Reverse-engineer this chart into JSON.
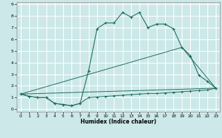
{
  "xlabel": "Humidex (Indice chaleur)",
  "background_color": "#cce8e8",
  "grid_color": "#ffffff",
  "line_color": "#1a6b5a",
  "xlim": [
    -0.5,
    23.5
  ],
  "ylim": [
    -0.2,
    9.2
  ],
  "xticks": [
    0,
    1,
    2,
    3,
    4,
    5,
    6,
    7,
    8,
    9,
    10,
    11,
    12,
    13,
    14,
    15,
    16,
    17,
    18,
    19,
    20,
    21,
    22,
    23
  ],
  "yticks": [
    0,
    1,
    2,
    3,
    4,
    5,
    6,
    7,
    8,
    9
  ],
  "series1_x": [
    0,
    1,
    2,
    3,
    4,
    5,
    6,
    7,
    8,
    9,
    10,
    11,
    12,
    13,
    14,
    15,
    16,
    17,
    18,
    19,
    20,
    21,
    22,
    23
  ],
  "series1_y": [
    1.3,
    1.1,
    1.0,
    1.0,
    0.5,
    0.4,
    0.3,
    0.5,
    3.3,
    6.9,
    7.4,
    7.4,
    8.3,
    7.9,
    8.3,
    7.0,
    7.3,
    7.3,
    6.9,
    5.3,
    4.6,
    2.9,
    2.4,
    1.8
  ],
  "series2_x": [
    0,
    1,
    2,
    3,
    4,
    5,
    6,
    7,
    8,
    9,
    10,
    11,
    12,
    13,
    14,
    15,
    16,
    17,
    18,
    19,
    20,
    21,
    22,
    23
  ],
  "series2_y": [
    1.3,
    1.1,
    1.0,
    1.0,
    0.5,
    0.4,
    0.3,
    0.5,
    1.0,
    1.05,
    1.1,
    1.15,
    1.2,
    1.25,
    1.3,
    1.35,
    1.35,
    1.4,
    1.45,
    1.5,
    1.55,
    1.6,
    1.65,
    1.8
  ],
  "series3_x": [
    0,
    23
  ],
  "series3_y": [
    1.3,
    1.8
  ],
  "series4_x": [
    0,
    20,
    23
  ],
  "series4_y": [
    1.3,
    4.6,
    1.8
  ],
  "series5_x": [
    0,
    19,
    23
  ],
  "series5_y": [
    1.3,
    5.3,
    1.8
  ]
}
